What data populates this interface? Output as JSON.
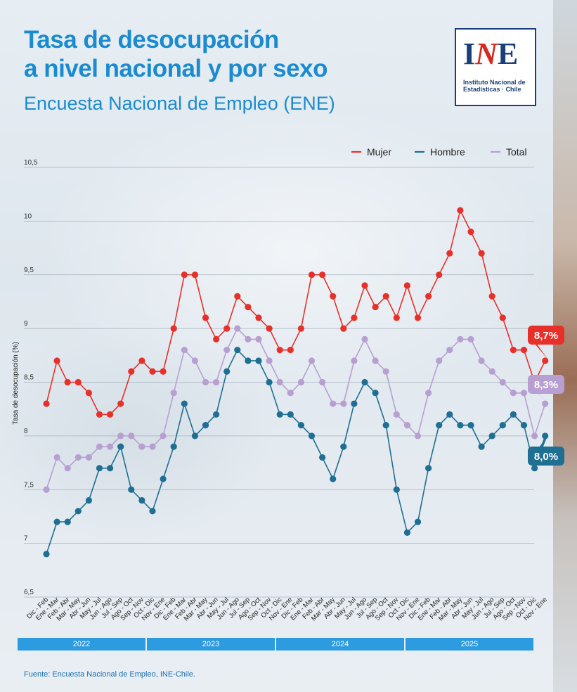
{
  "header": {
    "title_line1": "Tasa de desocupación",
    "title_line2": "a nivel nacional y por sexo",
    "subtitle": "Encuesta Nacional de Empleo (ENE)"
  },
  "logo": {
    "letters_i": "I",
    "letters_n": "N",
    "letters_e": "E",
    "line1": "Instituto Nacional de",
    "line2": "Estadísticas · Chile"
  },
  "source": "Fuente: Encuesta Nacional de Empleo, INE-Chile.",
  "colors": {
    "mujer": "#e8302a",
    "hombre": "#1f6f93",
    "total": "#b79fd2",
    "title": "#1b8bd0"
  },
  "chart_data": {
    "type": "line",
    "ylabel": "Tasa de desocupación (%)",
    "ylim": [
      6.5,
      10.5
    ],
    "yticks": [
      "6,5",
      "7",
      "7,5",
      "8",
      "8,5",
      "9",
      "9,5",
      "10",
      "10,5"
    ],
    "yticks_values": [
      6.5,
      7,
      7.5,
      8,
      8.5,
      9,
      9.5,
      10,
      10.5
    ],
    "grid": true,
    "legend_position": "top-right",
    "categories": [
      "Dic - Feb",
      "Ene - Mar",
      "Feb - Abr",
      "Mar - May",
      "Abr - Jun",
      "May - Jul",
      "Jun - Ago",
      "Jul - Sep",
      "Ago - Oct",
      "Sep - Nov",
      "Oct - Dic",
      "Nov - Ene",
      "Dic - Feb",
      "Ene - Mar",
      "Feb - Abr",
      "Mar - May",
      "Abr - Jun",
      "May - Jul",
      "Jun - Ago",
      "Jul - Sep",
      "Ago - Oct",
      "Sep - Nov",
      "Oct - Dic",
      "Nov - Ene",
      "Dic - Feb",
      "Ene - Mar",
      "Feb - Abr",
      "Mar - May",
      "Abr - Jun",
      "May - Jul",
      "Jun - Ago",
      "Jul - Sep",
      "Ago - Oct",
      "Sep - Nov",
      "Oct - Dic",
      "Nov - Ene",
      "Dic - Feb",
      "Ene - Mar",
      "Feb - Abr",
      "Mar - May",
      "Abr - Jun",
      "May - Jul",
      "Jun - Ago",
      "Jul - Sep",
      "Ago - Oct",
      "Sep - Nov",
      "Oct - Dic",
      "Nov - Ene"
    ],
    "years": [
      {
        "label": "2022",
        "count": 12
      },
      {
        "label": "2023",
        "count": 12
      },
      {
        "label": "2024",
        "count": 12
      },
      {
        "label": "2025",
        "count": 12
      }
    ],
    "series": [
      {
        "name": "Mujer",
        "key": "mujer",
        "values": [
          8.3,
          8.7,
          8.5,
          8.5,
          8.4,
          8.2,
          8.2,
          8.3,
          8.6,
          8.7,
          8.6,
          8.6,
          9.0,
          9.5,
          9.5,
          9.1,
          8.9,
          9.0,
          9.3,
          9.2,
          9.1,
          9.0,
          8.8,
          8.8,
          9.0,
          9.5,
          9.5,
          9.3,
          9.0,
          9.1,
          9.4,
          9.2,
          9.3,
          9.1,
          9.4,
          9.1,
          9.3,
          9.5,
          9.7,
          10.1,
          9.9,
          9.7,
          9.3,
          9.1,
          8.8,
          8.8,
          8.5,
          8.7
        ],
        "end_label": "8,7%"
      },
      {
        "name": "Hombre",
        "key": "hombre",
        "values": [
          6.9,
          7.2,
          7.2,
          7.3,
          7.4,
          7.7,
          7.7,
          7.9,
          7.5,
          7.4,
          7.3,
          7.6,
          7.9,
          8.3,
          8.0,
          8.1,
          8.2,
          8.6,
          8.8,
          8.7,
          8.7,
          8.5,
          8.2,
          8.2,
          8.1,
          8.0,
          7.8,
          7.6,
          7.9,
          8.3,
          8.5,
          8.4,
          8.1,
          7.5,
          7.1,
          7.2,
          7.7,
          8.1,
          8.2,
          8.1,
          8.1,
          7.9,
          8.0,
          8.1,
          8.2,
          8.1,
          7.7,
          8.0
        ],
        "end_label": "8,0%"
      },
      {
        "name": "Total",
        "key": "total",
        "values": [
          7.5,
          7.8,
          7.7,
          7.8,
          7.8,
          7.9,
          7.9,
          8.0,
          8.0,
          7.9,
          7.9,
          8.0,
          8.4,
          8.8,
          8.7,
          8.5,
          8.5,
          8.8,
          9.0,
          8.9,
          8.9,
          8.7,
          8.5,
          8.4,
          8.5,
          8.7,
          8.5,
          8.3,
          8.3,
          8.7,
          8.9,
          8.7,
          8.6,
          8.2,
          8.1,
          8.0,
          8.4,
          8.7,
          8.8,
          8.9,
          8.9,
          8.7,
          8.6,
          8.5,
          8.4,
          8.4,
          8.0,
          8.3
        ],
        "end_label": "8,3%"
      }
    ]
  }
}
